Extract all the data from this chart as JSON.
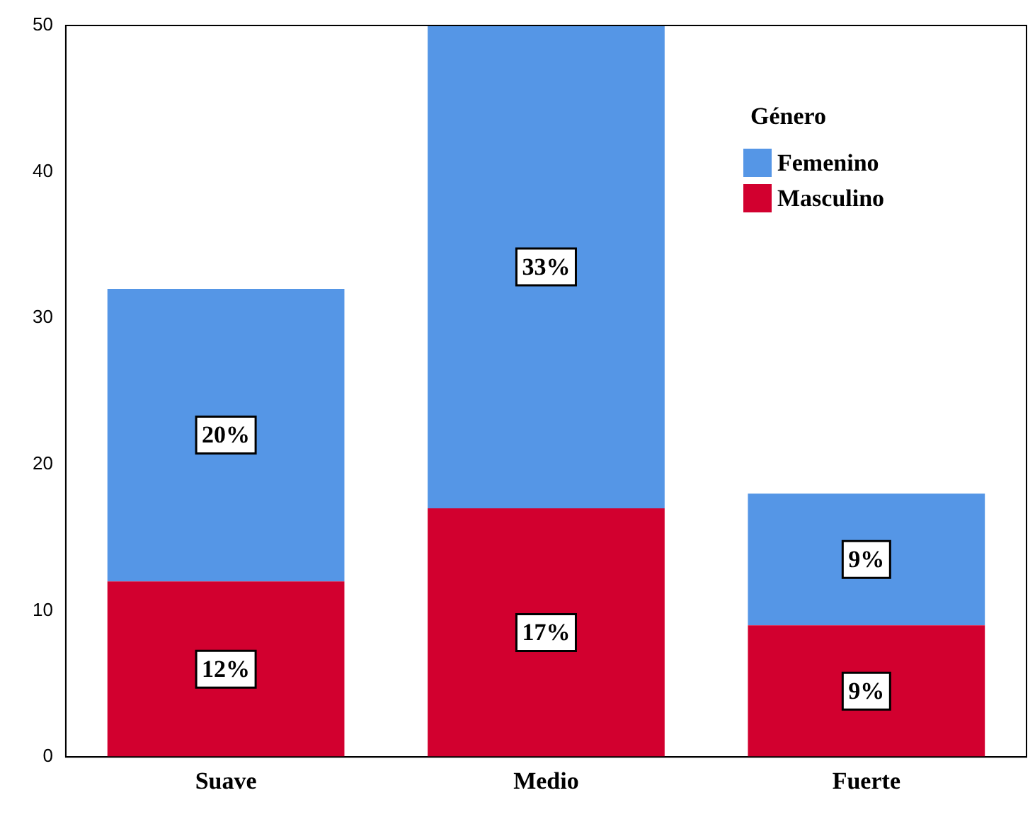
{
  "chart_data": {
    "type": "bar",
    "stacked": true,
    "legend_title": "Género",
    "legend": "top right",
    "categories": [
      "Suave",
      "Medio",
      "Fuerte"
    ],
    "series": [
      {
        "name": "Masculino",
        "color": "#d2002f",
        "values": [
          12,
          17,
          9
        ],
        "value_labels": [
          "12%",
          "17%",
          "9%"
        ]
      },
      {
        "name": "Femenino",
        "color": "#5596e6",
        "values": [
          20,
          33,
          9
        ],
        "value_labels": [
          "20%",
          "33%",
          "9%"
        ]
      }
    ],
    "ylim": [
      0,
      50
    ],
    "yticks": [
      0,
      10,
      20,
      30,
      40,
      50
    ],
    "grid": false
  }
}
